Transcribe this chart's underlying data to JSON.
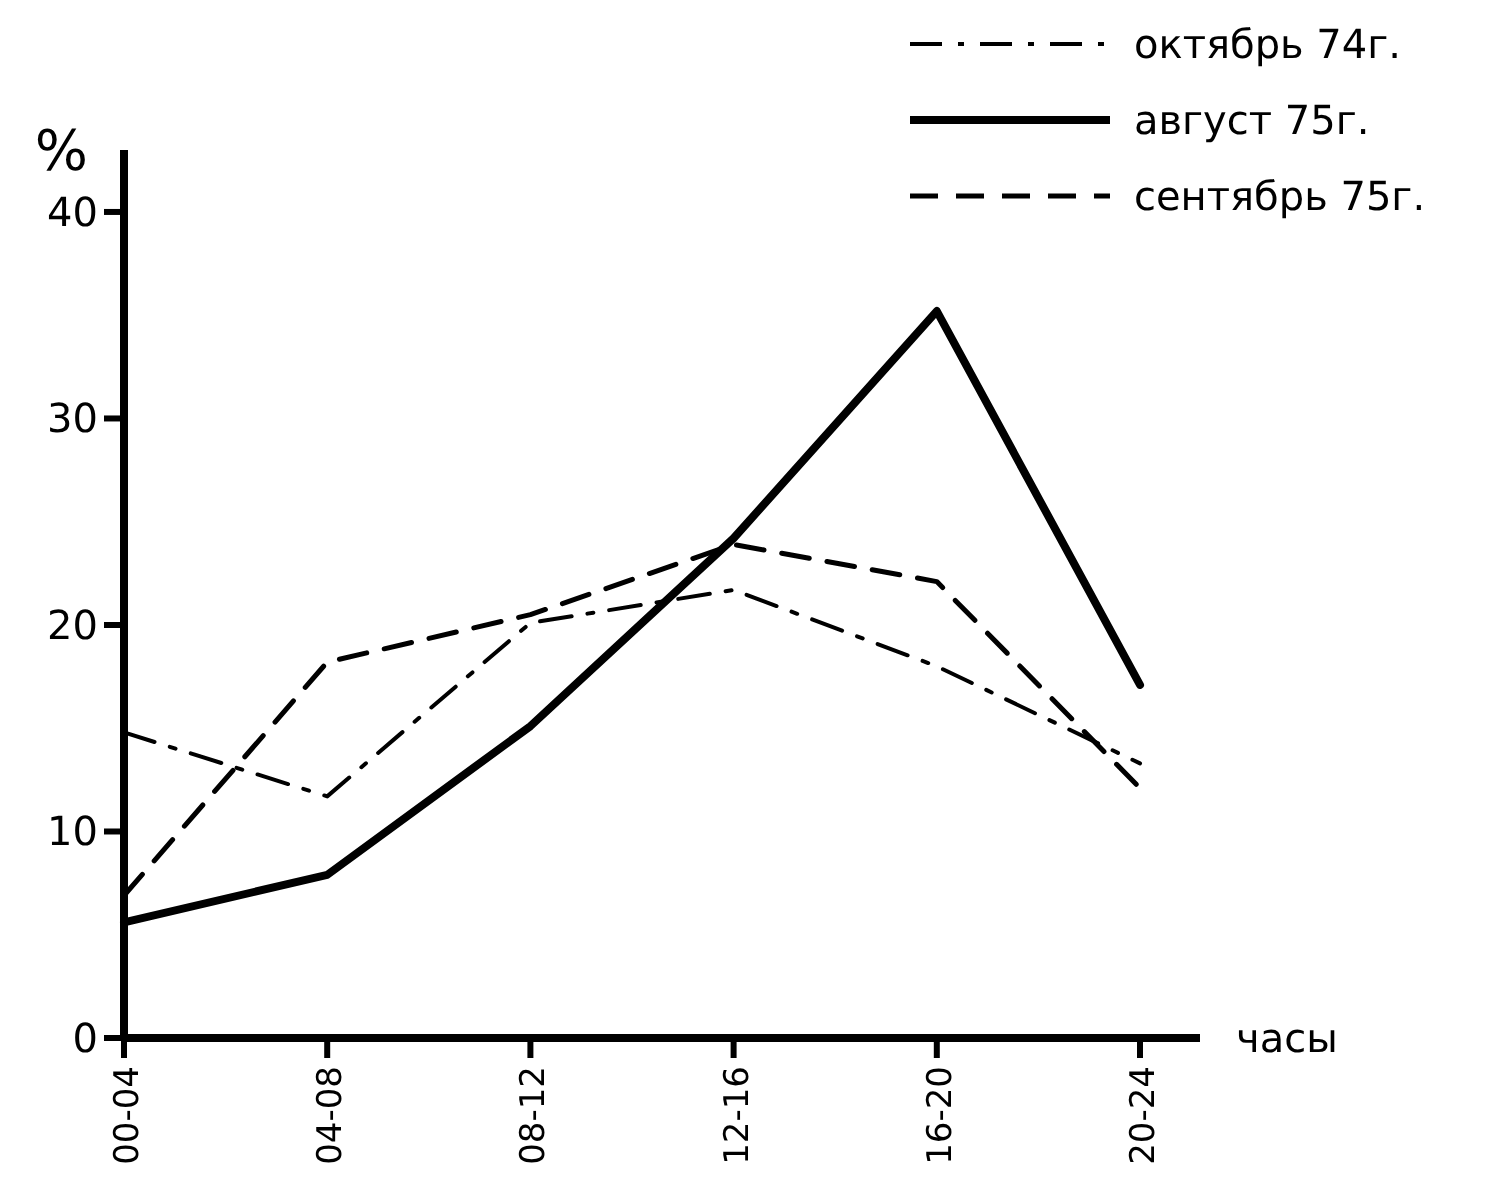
{
  "chart_data": {
    "type": "line",
    "xlabel": "часы",
    "ylabel": "%",
    "categories": [
      "00-04",
      "04-08",
      "08-12",
      "12-16",
      "16-20",
      "20-24"
    ],
    "ylim": [
      0,
      43
    ],
    "yticks": [
      0,
      10,
      20,
      30,
      40
    ],
    "grid": false,
    "legend": "top right",
    "series": [
      {
        "name": "октябрь 74г.",
        "color": "#000000",
        "line_style": "dashdot",
        "values": [
          14.8,
          11.7,
          20.1,
          21.7,
          18,
          13.3
        ]
      },
      {
        "name": "август 75г.",
        "color": "#000000",
        "line_style": "solid",
        "values": [
          5.6,
          7.9,
          15.1,
          24.2,
          35.2,
          17.1
        ]
      },
      {
        "name": "сентябрь 75г.",
        "color": "#000000",
        "line_style": "dashed",
        "values": [
          6.9,
          18.2,
          20.5,
          23.9,
          22.1,
          12.1
        ]
      }
    ]
  }
}
